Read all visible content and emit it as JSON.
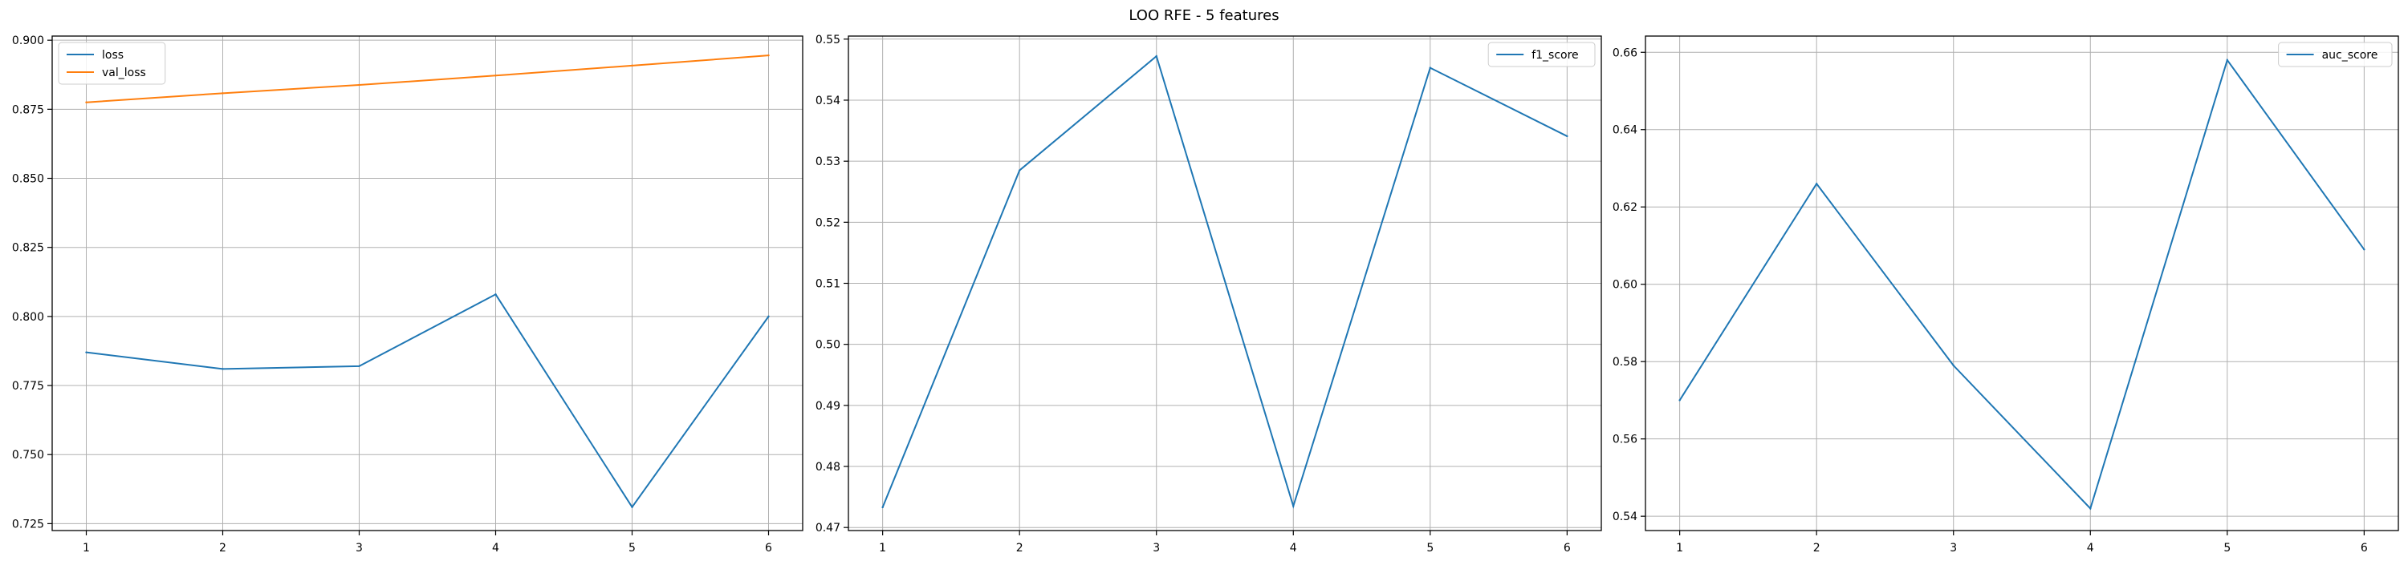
{
  "figure_title": "LOO RFE - 5 features",
  "colors": {
    "series_blue": "#1f77b4",
    "series_orange": "#ff7f0e",
    "grid": "#b0b0b0",
    "axis": "#000000"
  },
  "chart_data": [
    {
      "type": "line",
      "title": "",
      "xlabel": "",
      "ylabel": "",
      "x": [
        1,
        2,
        3,
        4,
        5,
        6
      ],
      "xlim": [
        0.75,
        6.25
      ],
      "ylim": [
        0.7225,
        0.9015
      ],
      "xticks": [
        1,
        2,
        3,
        4,
        5,
        6
      ],
      "yticks": [
        0.725,
        0.75,
        0.775,
        0.8,
        0.825,
        0.85,
        0.875,
        0.9
      ],
      "ytick_labels": [
        "0.725",
        "0.750",
        "0.775",
        "0.800",
        "0.825",
        "0.850",
        "0.875",
        "0.900"
      ],
      "grid": true,
      "legend_position": "upper-left",
      "series": [
        {
          "name": "loss",
          "color": "#1f77b4",
          "values": [
            0.787,
            0.781,
            0.782,
            0.808,
            0.731,
            0.8
          ]
        },
        {
          "name": "val_loss",
          "color": "#ff7f0e",
          "values": [
            0.8775,
            0.8808,
            0.8838,
            0.8872,
            0.8908,
            0.8945
          ]
        }
      ]
    },
    {
      "type": "line",
      "title": "",
      "xlabel": "",
      "ylabel": "",
      "x": [
        1,
        2,
        3,
        4,
        5,
        6
      ],
      "xlim": [
        0.75,
        6.25
      ],
      "ylim": [
        0.4695,
        0.5505
      ],
      "xticks": [
        1,
        2,
        3,
        4,
        5,
        6
      ],
      "yticks": [
        0.47,
        0.48,
        0.49,
        0.5,
        0.51,
        0.52,
        0.53,
        0.54,
        0.55
      ],
      "ytick_labels": [
        "0.47",
        "0.48",
        "0.49",
        "0.50",
        "0.51",
        "0.52",
        "0.53",
        "0.54",
        "0.55"
      ],
      "grid": true,
      "legend_position": "upper-right",
      "series": [
        {
          "name": "f1_score",
          "color": "#1f77b4",
          "values": [
            0.4733,
            0.5285,
            0.5472,
            0.4735,
            0.5453,
            0.5341
          ]
        }
      ]
    },
    {
      "type": "line",
      "title": "",
      "xlabel": "",
      "ylabel": "",
      "x": [
        1,
        2,
        3,
        4,
        5,
        6
      ],
      "xlim": [
        0.75,
        6.25
      ],
      "ylim": [
        0.5363,
        0.6642
      ],
      "xticks": [
        1,
        2,
        3,
        4,
        5,
        6
      ],
      "yticks": [
        0.54,
        0.56,
        0.58,
        0.6,
        0.62,
        0.64,
        0.66
      ],
      "ytick_labels": [
        "0.54",
        "0.56",
        "0.58",
        "0.60",
        "0.62",
        "0.64",
        "0.66"
      ],
      "grid": true,
      "legend_position": "upper-right",
      "series": [
        {
          "name": "auc_score",
          "color": "#1f77b4",
          "values": [
            0.57,
            0.626,
            0.579,
            0.542,
            0.658,
            0.609
          ]
        }
      ]
    }
  ]
}
